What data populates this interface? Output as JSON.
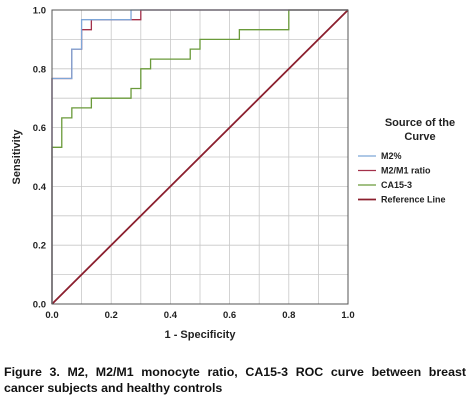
{
  "chart_data": {
    "type": "line",
    "xlabel": "1 - Specificity",
    "ylabel": "Sensitivity",
    "xlim": [
      0,
      1
    ],
    "ylim": [
      0,
      1
    ],
    "x_ticks": [
      "0.0",
      "0.2",
      "0.4",
      "0.6",
      "0.8",
      "1.0"
    ],
    "y_ticks": [
      "0.0",
      "0.2",
      "0.4",
      "0.6",
      "0.8",
      "1.0"
    ],
    "grid": true,
    "legend": {
      "title_line1": "Source of the",
      "title_line2": "Curve",
      "placement": "right"
    },
    "series": [
      {
        "name": "M2%",
        "color": "#7ea6d8",
        "points": [
          [
            0,
            0
          ],
          [
            0,
            0.767
          ],
          [
            0.067,
            0.767
          ],
          [
            0.067,
            0.867
          ],
          [
            0.1,
            0.867
          ],
          [
            0.1,
            0.933
          ],
          [
            0.1,
            0.967
          ],
          [
            0.267,
            0.967
          ],
          [
            0.267,
            1
          ],
          [
            1,
            1
          ]
        ]
      },
      {
        "name": "M2/M1 ratio",
        "color": "#a3304a",
        "points": [
          [
            0,
            0
          ],
          [
            0,
            0.767
          ],
          [
            0.067,
            0.767
          ],
          [
            0.067,
            0.867
          ],
          [
            0.1,
            0.867
          ],
          [
            0.1,
            0.933
          ],
          [
            0.133,
            0.933
          ],
          [
            0.133,
            0.967
          ],
          [
            0.3,
            0.967
          ],
          [
            0.3,
            1
          ],
          [
            1,
            1
          ]
        ]
      },
      {
        "name": "CA15-3",
        "color": "#6a9a3a",
        "points": [
          [
            0,
            0
          ],
          [
            0,
            0.533
          ],
          [
            0.033,
            0.533
          ],
          [
            0.033,
            0.633
          ],
          [
            0.067,
            0.633
          ],
          [
            0.067,
            0.667
          ],
          [
            0.133,
            0.667
          ],
          [
            0.133,
            0.7
          ],
          [
            0.267,
            0.7
          ],
          [
            0.267,
            0.733
          ],
          [
            0.3,
            0.733
          ],
          [
            0.3,
            0.767
          ],
          [
            0.3,
            0.8
          ],
          [
            0.333,
            0.8
          ],
          [
            0.333,
            0.833
          ],
          [
            0.467,
            0.833
          ],
          [
            0.467,
            0.867
          ],
          [
            0.5,
            0.867
          ],
          [
            0.5,
            0.9
          ],
          [
            0.533,
            0.9
          ],
          [
            0.533,
            0.9
          ],
          [
            0.633,
            0.9
          ],
          [
            0.633,
            0.933
          ],
          [
            0.8,
            0.933
          ],
          [
            0.8,
            1
          ],
          [
            1,
            1
          ]
        ]
      },
      {
        "name": "Reference Line",
        "color": "#8b1f2e",
        "points": [
          [
            0,
            0
          ],
          [
            1,
            1
          ]
        ]
      }
    ]
  },
  "caption": "Figure 3. M2, M2/M1 monocyte ratio, CA15-3 ROC curve between breast cancer subjects and healthy controls"
}
